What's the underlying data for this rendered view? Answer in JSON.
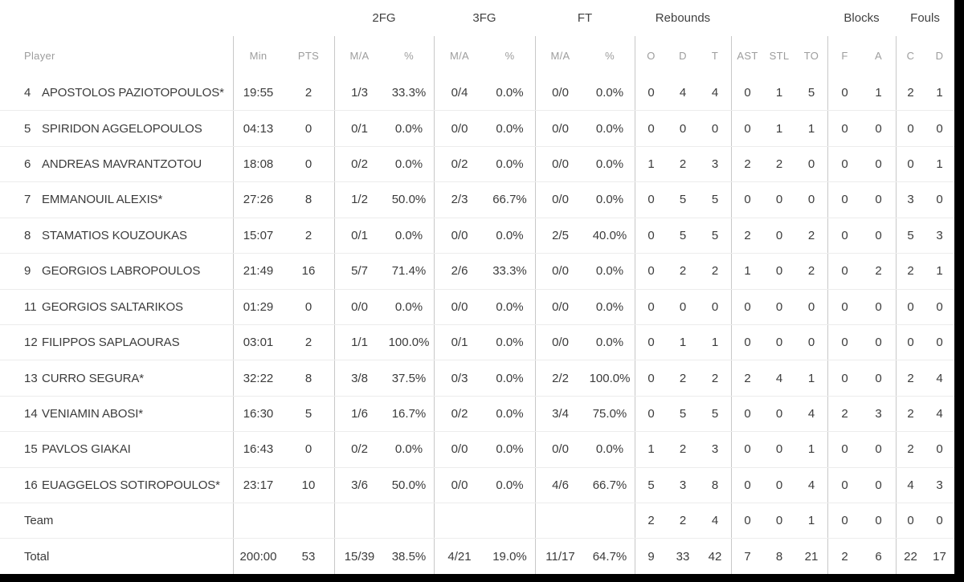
{
  "colors": {
    "background": "#000000",
    "sheet": "#ffffff",
    "divider": "#c8c8c8",
    "row_line": "#ececec",
    "header_text": "#9d9d9d",
    "group_header_text": "#414141",
    "data_text": "#3b3b3b"
  },
  "table": {
    "group_headers": {
      "fg2": "2FG",
      "fg3": "3FG",
      "ft": "FT",
      "rebounds": "Rebounds",
      "blocks": "Blocks",
      "fouls": "Fouls"
    },
    "col_headers": [
      "Player",
      "Min",
      "PTS",
      "M/A",
      "%",
      "M/A",
      "%",
      "M/A",
      "%",
      "O",
      "D",
      "T",
      "AST",
      "STL",
      "TO",
      "F",
      "A",
      "C",
      "D"
    ],
    "rows": [
      {
        "num": "4",
        "name": "APOSTOLOS PAZIOTOPOULOS*",
        "min": "19:55",
        "pts": "2",
        "fg2_ma": "1/3",
        "fg2_pct": "33.3%",
        "fg3_ma": "0/4",
        "fg3_pct": "0.0%",
        "ft_ma": "0/0",
        "ft_pct": "0.0%",
        "reb_o": "0",
        "reb_d": "4",
        "reb_t": "4",
        "ast": "0",
        "stl": "1",
        "to": "5",
        "blk_f": "0",
        "blk_a": "1",
        "foul_c": "2",
        "foul_d": "1"
      },
      {
        "num": "5",
        "name": "SPIRIDON AGGELOPOULOS",
        "min": "04:13",
        "pts": "0",
        "fg2_ma": "0/1",
        "fg2_pct": "0.0%",
        "fg3_ma": "0/0",
        "fg3_pct": "0.0%",
        "ft_ma": "0/0",
        "ft_pct": "0.0%",
        "reb_o": "0",
        "reb_d": "0",
        "reb_t": "0",
        "ast": "0",
        "stl": "1",
        "to": "1",
        "blk_f": "0",
        "blk_a": "0",
        "foul_c": "0",
        "foul_d": "0"
      },
      {
        "num": "6",
        "name": "ANDREAS MAVRANTZOTOU",
        "min": "18:08",
        "pts": "0",
        "fg2_ma": "0/2",
        "fg2_pct": "0.0%",
        "fg3_ma": "0/2",
        "fg3_pct": "0.0%",
        "ft_ma": "0/0",
        "ft_pct": "0.0%",
        "reb_o": "1",
        "reb_d": "2",
        "reb_t": "3",
        "ast": "2",
        "stl": "2",
        "to": "0",
        "blk_f": "0",
        "blk_a": "0",
        "foul_c": "0",
        "foul_d": "1"
      },
      {
        "num": "7",
        "name": "EMMANOUIL ALEXIS*",
        "min": "27:26",
        "pts": "8",
        "fg2_ma": "1/2",
        "fg2_pct": "50.0%",
        "fg3_ma": "2/3",
        "fg3_pct": "66.7%",
        "ft_ma": "0/0",
        "ft_pct": "0.0%",
        "reb_o": "0",
        "reb_d": "5",
        "reb_t": "5",
        "ast": "0",
        "stl": "0",
        "to": "0",
        "blk_f": "0",
        "blk_a": "0",
        "foul_c": "3",
        "foul_d": "0"
      },
      {
        "num": "8",
        "name": "STAMATIOS KOUZOUKAS",
        "min": "15:07",
        "pts": "2",
        "fg2_ma": "0/1",
        "fg2_pct": "0.0%",
        "fg3_ma": "0/0",
        "fg3_pct": "0.0%",
        "ft_ma": "2/5",
        "ft_pct": "40.0%",
        "reb_o": "0",
        "reb_d": "5",
        "reb_t": "5",
        "ast": "2",
        "stl": "0",
        "to": "2",
        "blk_f": "0",
        "blk_a": "0",
        "foul_c": "5",
        "foul_d": "3"
      },
      {
        "num": "9",
        "name": "GEORGIOS LABROPOULOS",
        "min": "21:49",
        "pts": "16",
        "fg2_ma": "5/7",
        "fg2_pct": "71.4%",
        "fg3_ma": "2/6",
        "fg3_pct": "33.3%",
        "ft_ma": "0/0",
        "ft_pct": "0.0%",
        "reb_o": "0",
        "reb_d": "2",
        "reb_t": "2",
        "ast": "1",
        "stl": "0",
        "to": "2",
        "blk_f": "0",
        "blk_a": "2",
        "foul_c": "2",
        "foul_d": "1"
      },
      {
        "num": "11",
        "name": "GEORGIOS SALTARIKOS",
        "min": "01:29",
        "pts": "0",
        "fg2_ma": "0/0",
        "fg2_pct": "0.0%",
        "fg3_ma": "0/0",
        "fg3_pct": "0.0%",
        "ft_ma": "0/0",
        "ft_pct": "0.0%",
        "reb_o": "0",
        "reb_d": "0",
        "reb_t": "0",
        "ast": "0",
        "stl": "0",
        "to": "0",
        "blk_f": "0",
        "blk_a": "0",
        "foul_c": "0",
        "foul_d": "0"
      },
      {
        "num": "12",
        "name": "FILIPPOS SAPLAOURAS",
        "min": "03:01",
        "pts": "2",
        "fg2_ma": "1/1",
        "fg2_pct": "100.0%",
        "fg3_ma": "0/1",
        "fg3_pct": "0.0%",
        "ft_ma": "0/0",
        "ft_pct": "0.0%",
        "reb_o": "0",
        "reb_d": "1",
        "reb_t": "1",
        "ast": "0",
        "stl": "0",
        "to": "0",
        "blk_f": "0",
        "blk_a": "0",
        "foul_c": "0",
        "foul_d": "0"
      },
      {
        "num": "13",
        "name": "CURRO SEGURA*",
        "min": "32:22",
        "pts": "8",
        "fg2_ma": "3/8",
        "fg2_pct": "37.5%",
        "fg3_ma": "0/3",
        "fg3_pct": "0.0%",
        "ft_ma": "2/2",
        "ft_pct": "100.0%",
        "reb_o": "0",
        "reb_d": "2",
        "reb_t": "2",
        "ast": "2",
        "stl": "4",
        "to": "1",
        "blk_f": "0",
        "blk_a": "0",
        "foul_c": "2",
        "foul_d": "4"
      },
      {
        "num": "14",
        "name": "VENIAMIN ABOSI*",
        "min": "16:30",
        "pts": "5",
        "fg2_ma": "1/6",
        "fg2_pct": "16.7%",
        "fg3_ma": "0/2",
        "fg3_pct": "0.0%",
        "ft_ma": "3/4",
        "ft_pct": "75.0%",
        "reb_o": "0",
        "reb_d": "5",
        "reb_t": "5",
        "ast": "0",
        "stl": "0",
        "to": "4",
        "blk_f": "2",
        "blk_a": "3",
        "foul_c": "2",
        "foul_d": "4"
      },
      {
        "num": "15",
        "name": "PAVLOS GIAKAI",
        "min": "16:43",
        "pts": "0",
        "fg2_ma": "0/2",
        "fg2_pct": "0.0%",
        "fg3_ma": "0/0",
        "fg3_pct": "0.0%",
        "ft_ma": "0/0",
        "ft_pct": "0.0%",
        "reb_o": "1",
        "reb_d": "2",
        "reb_t": "3",
        "ast": "0",
        "stl": "0",
        "to": "1",
        "blk_f": "0",
        "blk_a": "0",
        "foul_c": "2",
        "foul_d": "0"
      },
      {
        "num": "16",
        "name": "EUAGGELOS SOTIROPOULOS*",
        "min": "23:17",
        "pts": "10",
        "fg2_ma": "3/6",
        "fg2_pct": "50.0%",
        "fg3_ma": "0/0",
        "fg3_pct": "0.0%",
        "ft_ma": "4/6",
        "ft_pct": "66.7%",
        "reb_o": "5",
        "reb_d": "3",
        "reb_t": "8",
        "ast": "0",
        "stl": "0",
        "to": "4",
        "blk_f": "0",
        "blk_a": "0",
        "foul_c": "4",
        "foul_d": "3"
      },
      {
        "num": "",
        "name": "Team",
        "min": "",
        "pts": "",
        "fg2_ma": "",
        "fg2_pct": "",
        "fg3_ma": "",
        "fg3_pct": "",
        "ft_ma": "",
        "ft_pct": "",
        "reb_o": "2",
        "reb_d": "2",
        "reb_t": "4",
        "ast": "0",
        "stl": "0",
        "to": "1",
        "blk_f": "0",
        "blk_a": "0",
        "foul_c": "0",
        "foul_d": "0"
      },
      {
        "num": "",
        "name": "Total",
        "min": "200:00",
        "pts": "53",
        "fg2_ma": "15/39",
        "fg2_pct": "38.5%",
        "fg3_ma": "4/21",
        "fg3_pct": "19.0%",
        "ft_ma": "11/17",
        "ft_pct": "64.7%",
        "reb_o": "9",
        "reb_d": "33",
        "reb_t": "42",
        "ast": "7",
        "stl": "8",
        "to": "21",
        "blk_f": "2",
        "blk_a": "6",
        "foul_c": "22",
        "foul_d": "17"
      }
    ]
  }
}
